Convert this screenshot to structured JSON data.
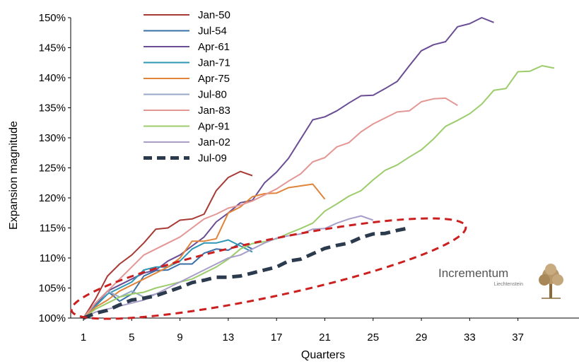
{
  "chart_data": {
    "type": "line",
    "xlabel": "Quarters",
    "ylabel": "Expansion magnitude",
    "xlim": [
      1,
      42
    ],
    "ylim": [
      100,
      150
    ],
    "x_ticks": [
      1,
      5,
      9,
      13,
      17,
      21,
      25,
      29,
      33,
      37
    ],
    "y_ticks": [
      "100%",
      "105%",
      "110%",
      "115%",
      "120%",
      "125%",
      "130%",
      "135%",
      "140%",
      "145%",
      "150%"
    ],
    "legend_position": "top-left",
    "grid": false,
    "series": [
      {
        "name": "Jan-50",
        "color": "#a83a36",
        "dashed": false,
        "values": [
          100,
          103.2,
          107,
          109,
          110.5,
          112.5,
          114.8,
          115,
          116.3,
          116.5,
          117.3,
          121.2,
          123.4,
          124.4,
          123.7
        ]
      },
      {
        "name": "Jul-54",
        "color": "#3a6fa6",
        "dashed": false,
        "values": [
          100,
          102.5,
          104.5,
          102.8,
          104,
          107,
          107.9,
          108,
          109,
          109,
          110.8,
          111.5,
          111.3,
          112.5,
          111.5
        ]
      },
      {
        "name": "Apr-61",
        "color": "#6a4d94",
        "dashed": false,
        "values": [
          100,
          102.2,
          104.5,
          105.5,
          106.5,
          107.5,
          108,
          109.5,
          110.5,
          112,
          113.5,
          116,
          117.5,
          119.2,
          119.6,
          122.5,
          124.3,
          126.6,
          129.8,
          133,
          133.5,
          134.5,
          135.8,
          137,
          137.1,
          138.2,
          139.4,
          142,
          144.5,
          145.5,
          146,
          148.5,
          149,
          150,
          149.2
        ]
      },
      {
        "name": "Jan-71",
        "color": "#2e97b5",
        "dashed": false,
        "values": [
          100,
          102,
          104,
          105,
          106,
          108,
          108.5,
          108.5,
          109.5,
          111.5,
          112.5,
          112.5,
          113,
          112,
          111
        ]
      },
      {
        "name": "Apr-75",
        "color": "#e0843a",
        "dashed": false,
        "values": [
          100,
          101.8,
          103,
          104.5,
          105.5,
          106.5,
          107.5,
          108.5,
          110,
          112.8,
          112.8,
          113.2,
          117.5,
          118.5,
          120.2,
          120.7,
          120.8,
          121.7,
          122,
          122.3,
          119.8
        ]
      },
      {
        "name": "Jul-80",
        "color": "#96a9c6",
        "dashed": false,
        "values": [
          100,
          102.5,
          104.5,
          103.5,
          104.5,
          103.5,
          104
        ]
      },
      {
        "name": "Jan-83",
        "color": "#e39795",
        "dashed": false,
        "values": [
          100,
          102.5,
          104.5,
          106.5,
          108.5,
          110.5,
          111.5,
          112.5,
          113.5,
          115,
          116.5,
          117.3,
          118.3,
          118.8,
          119.5,
          120.5,
          121.5,
          122.8,
          124,
          126,
          126.7,
          128.5,
          129.2,
          131,
          132.3,
          133.3,
          134.3,
          134.5,
          136,
          136.5,
          136.6,
          135.4
        ]
      },
      {
        "name": "Apr-91",
        "color": "#9ccc6b",
        "dashed": false,
        "values": [
          100,
          101.5,
          102.5,
          103.5,
          104,
          104.3,
          105,
          105.5,
          106,
          106.5,
          107.5,
          108.5,
          109.8,
          111.5,
          112.4,
          112.7,
          113.2,
          114.1,
          114.9,
          115.8,
          117.8,
          119,
          120.3,
          121.2,
          123,
          124.6,
          125.5,
          126.8,
          128,
          129.8,
          131.9,
          132.9,
          134,
          135.6,
          137.9,
          138.2,
          141,
          141.1,
          142,
          141.6
        ]
      },
      {
        "name": "Jan-02",
        "color": "#a89ec8",
        "dashed": false,
        "values": [
          100,
          101,
          101.5,
          102,
          102.5,
          103,
          104,
          105,
          106,
          107,
          108,
          109,
          110,
          110.5,
          111.5,
          112.5,
          113.3,
          113.7,
          114,
          114.8,
          114.9,
          115.8,
          116.5,
          117,
          116.3
        ]
      },
      {
        "name": "Jul-09",
        "color": "#2b3a4d",
        "dashed": true,
        "values": [
          100,
          100.8,
          101.3,
          102.2,
          103,
          103.3,
          103.7,
          104.4,
          105.1,
          105.9,
          106.3,
          106.8,
          106.8,
          107,
          107.5,
          108,
          108.5,
          109.5,
          109.8,
          110.7,
          111.6,
          112.1,
          112.5,
          113.4,
          114,
          114.1,
          114.6,
          115
        ]
      }
    ]
  },
  "logo": {
    "name": "Incrementum",
    "sub": "Liechtenstein"
  }
}
